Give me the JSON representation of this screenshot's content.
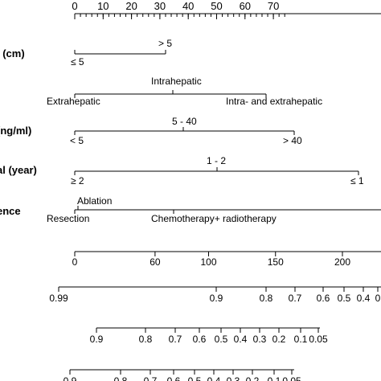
{
  "chart_data": {
    "type": "nomogram",
    "title": "",
    "rows": [
      {
        "key": "points",
        "label": "",
        "scale": {
          "min": 0,
          "max": 75,
          "ticks": [
            {
              "value": 0,
              "label": "0"
            },
            {
              "value": 10,
              "label": "10"
            },
            {
              "value": 20,
              "label": "20"
            },
            {
              "value": 30,
              "label": "30"
            },
            {
              "value": 40,
              "label": "40"
            },
            {
              "value": 50,
              "label": "50"
            },
            {
              "value": 60,
              "label": "60"
            },
            {
              "value": 70,
              "label": "70"
            }
          ],
          "minor_step": 2
        }
      },
      {
        "key": "tumor_size",
        "label": "l (cm)",
        "levels": [
          {
            "label": "≤ 5",
            "points": 0
          },
          {
            "label": "> 5",
            "points": 23
          }
        ]
      },
      {
        "key": "location",
        "label": "",
        "levels": [
          {
            "label": "Extrahepatic",
            "points": 0
          },
          {
            "label": "Intrahepatic",
            "points": 25
          },
          {
            "label": "Intra- and extrahepatic",
            "points": 48
          }
        ]
      },
      {
        "key": "afp",
        "label": "(ng/ml)",
        "levels": [
          {
            "label": "< 5",
            "points": 0
          },
          {
            "label": "5 - 40",
            "points": 27
          },
          {
            "label": "> 40",
            "points": 55
          }
        ]
      },
      {
        "key": "interval",
        "label": "al (year)",
        "levels": [
          {
            "label": "≥ 2",
            "points": 0
          },
          {
            "label": "1 - 2",
            "points": 36
          },
          {
            "label": "≤ 1",
            "points": 72
          }
        ]
      },
      {
        "key": "treatment",
        "label": "ence",
        "levels": [
          {
            "label": "Resection",
            "points": 0
          },
          {
            "label": "Ablation",
            "points": 1
          },
          {
            "label": "Chemotherapy+ radiotherapy",
            "points": 25
          }
        ]
      },
      {
        "key": "total_points",
        "label": "",
        "scale": {
          "min": 0,
          "max": 240,
          "ticks": [
            {
              "value": 0,
              "label": "0"
            },
            {
              "value": 60,
              "label": "60"
            },
            {
              "value": 100,
              "label": "100"
            },
            {
              "value": 150,
              "label": "150"
            },
            {
              "value": 200,
              "label": "200"
            }
          ]
        }
      },
      {
        "key": "prob_1",
        "label": "",
        "ticks": [
          "0.99",
          "0.9",
          "0.8",
          "0.7",
          "0.6",
          "0.5",
          "0.4",
          "0"
        ]
      },
      {
        "key": "prob_2",
        "label": "",
        "ticks": [
          "0.9",
          "0.8",
          "0.7",
          "0.6",
          "0.5",
          "0.4",
          "0.3",
          "0.2",
          "0.1",
          "0.05"
        ]
      },
      {
        "key": "prob_3",
        "label": "",
        "ticks": [
          "0.9",
          "0.8",
          "0.7",
          "0.6",
          "0.5",
          "0.4",
          "0.3",
          "0.2",
          "0.1",
          "0.05"
        ]
      }
    ]
  }
}
